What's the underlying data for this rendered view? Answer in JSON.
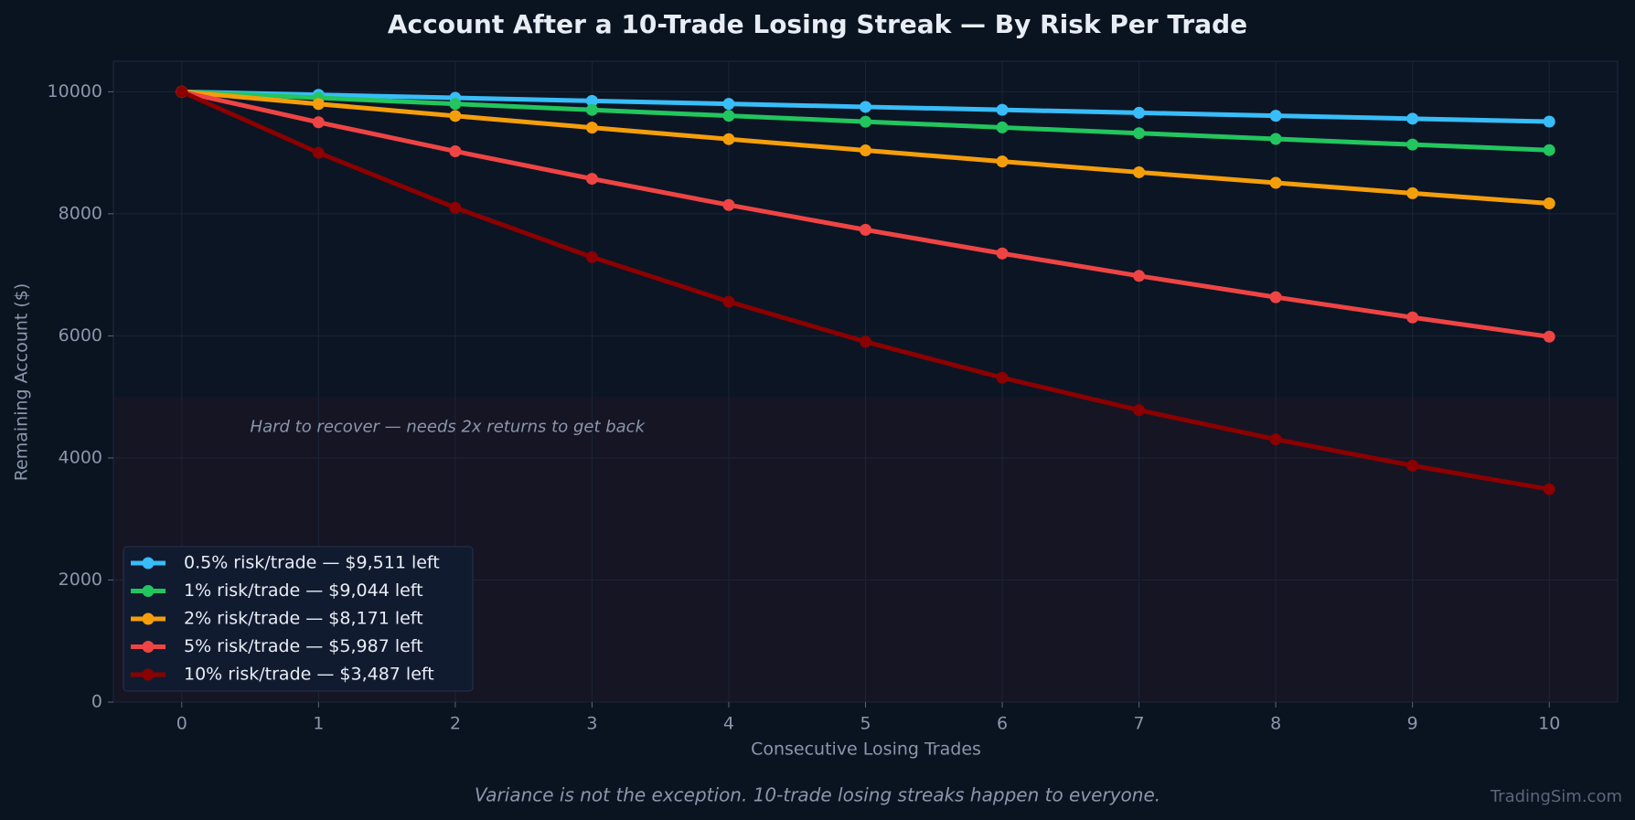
{
  "chart_data": {
    "type": "line",
    "title": "Account After a 10-Trade Losing Streak — By Risk Per Trade",
    "x_label": "Consecutive Losing Trades",
    "y_label": "Remaining Account ($)",
    "annotation": {
      "text": "Hard to recover — needs 2x returns to get back",
      "x": 0.5,
      "y": 4500
    },
    "shaded_range": [
      0,
      5000
    ],
    "footnote": "Variance is not the exception. 10-trade losing streaks happen to everyone.",
    "watermark": "TradingSim.com",
    "x": [
      0,
      1,
      2,
      3,
      4,
      5,
      6,
      7,
      8,
      9,
      10
    ],
    "xlim": [
      -0.5,
      10.5
    ],
    "xticks": [
      0,
      1,
      2,
      3,
      4,
      5,
      6,
      7,
      8,
      9,
      10
    ],
    "ylim": [
      0,
      10500
    ],
    "yticks": [
      0,
      2000,
      4000,
      6000,
      8000,
      10000
    ],
    "grid": true,
    "legend_position": "lower left",
    "series": [
      {
        "name": "0.5% risk/trade — $9,511 left",
        "color": "#38bdf8",
        "values": [
          10000,
          9950,
          9900,
          9851,
          9801,
          9752,
          9704,
          9655,
          9607,
          9559,
          9511
        ]
      },
      {
        "name": "1% risk/trade — $9,044 left",
        "color": "#22c55e",
        "values": [
          10000,
          9900,
          9801,
          9703,
          9606,
          9510,
          9415,
          9321,
          9227,
          9135,
          9044
        ]
      },
      {
        "name": "2% risk/trade — $8,171 left",
        "color": "#f59e0b",
        "values": [
          10000,
          9800,
          9604,
          9412,
          9224,
          9039,
          8858,
          8681,
          8508,
          8337,
          8171
        ]
      },
      {
        "name": "5% risk/trade — $5,987 left",
        "color": "#ef4444",
        "values": [
          10000,
          9500,
          9025,
          8574,
          8145,
          7738,
          7351,
          6983,
          6634,
          6302,
          5987
        ]
      },
      {
        "name": "10% risk/trade — $3,487 left",
        "color": "#8b0000",
        "values": [
          10000,
          9000,
          8100,
          7290,
          6561,
          5905,
          5314,
          4783,
          4305,
          3874,
          3487
        ]
      }
    ]
  }
}
